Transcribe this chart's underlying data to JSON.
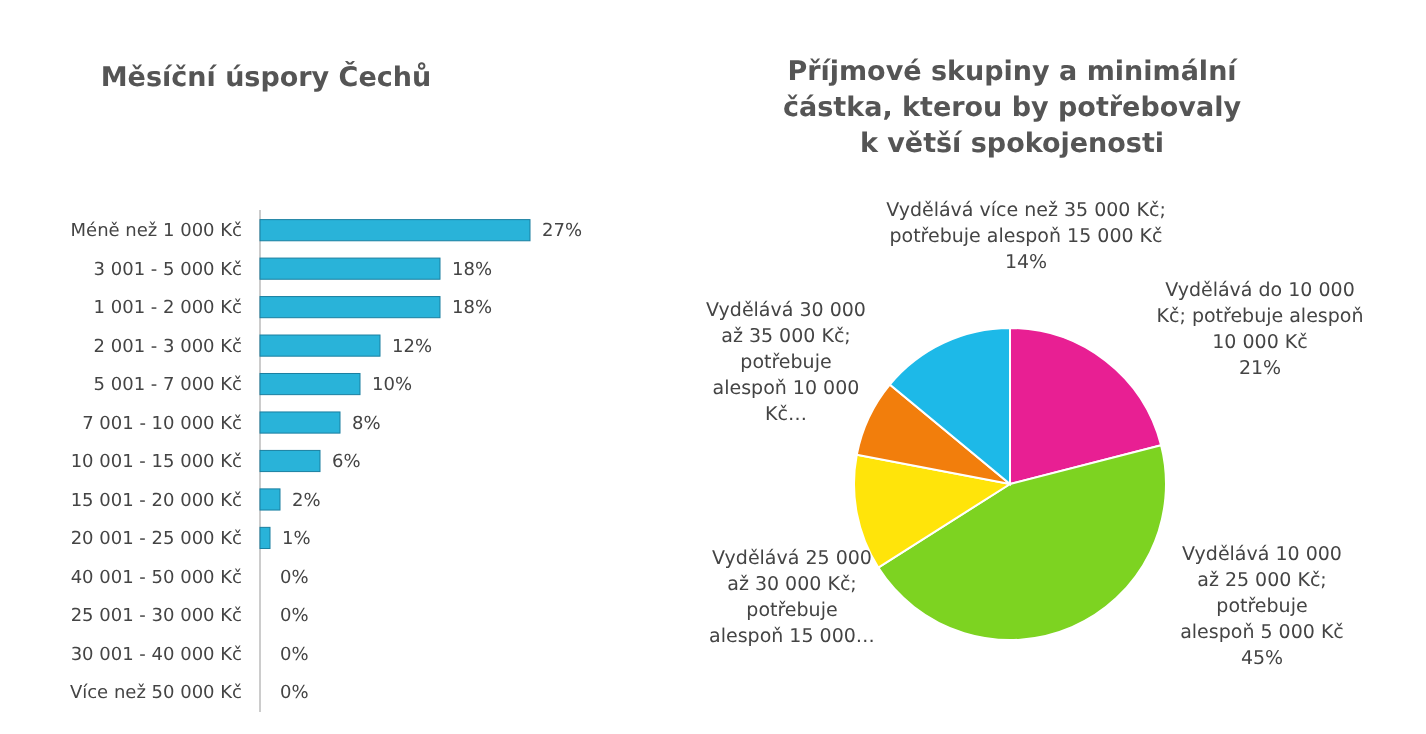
{
  "chart_data": [
    {
      "type": "bar",
      "orientation": "horizontal",
      "title": "Měsíční úspory Čechů",
      "categories": [
        "Méně než 1 000 Kč",
        "3 001 - 5 000 Kč",
        "1 001 - 2 000 Kč",
        "2 001 - 3 000 Kč",
        "5 001 - 7 000 Kč",
        "7 001 - 10 000 Kč",
        "10 001 - 15 000 Kč",
        "15 001 - 20 000 Kč",
        "20 001 - 25 000 Kč",
        "40 001 - 50 000 Kč",
        "25 001 - 30 000 Kč",
        "30 001 - 40 000 Kč",
        "Více než 50 000 Kč"
      ],
      "values": [
        27,
        18,
        18,
        12,
        10,
        8,
        6,
        2,
        1,
        0,
        0,
        0,
        0
      ],
      "value_labels": [
        "27%",
        "18%",
        "18%",
        "12%",
        "10%",
        "8%",
        "6%",
        "2%",
        "1%",
        "0%",
        "0%",
        "0%",
        "0%"
      ],
      "color": "#29b3d9"
    },
    {
      "type": "pie",
      "title": "Příjmové skupiny a minimální částka, kterou by potřebovaly k větší spokojenosti",
      "categories": [
        "Vydělává do 10 000 Kč; potřebuje alespoň 10 000 Kč",
        "Vydělává 10 000 až 25 000 Kč; potřebuje alespoň 5 000 Kč",
        "Vydělává 25 000 až 30 000 Kč; potřebuje alespoň 15 000…",
        "Vydělává 30 000 až 35 000 Kč; potřebuje alespoň 10 000 Kč…",
        "Vydělává více než 35 000 Kč; potřebuje alespoň 15 000 Kč"
      ],
      "values": [
        21,
        45,
        12,
        8,
        14
      ],
      "value_labels": [
        "21%",
        "45%",
        null,
        null,
        "14%"
      ],
      "colors": [
        "#e81f93",
        "#7dd321",
        "#ffe40a",
        "#f27e0c",
        "#1db9e8"
      ]
    }
  ]
}
